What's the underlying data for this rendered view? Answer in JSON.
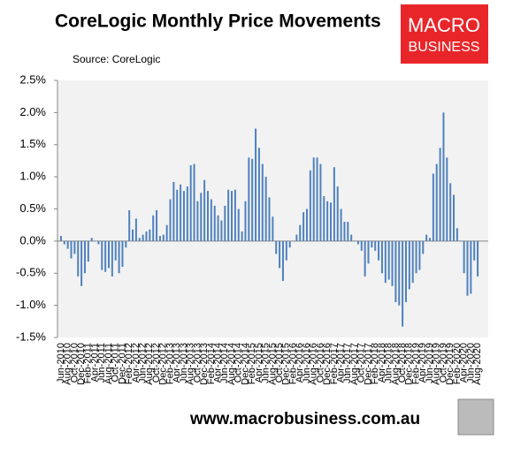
{
  "chart_data": {
    "type": "bar",
    "title": "CoreLogic Monthly Price Movements",
    "subtitle": "Source: CoreLogic",
    "logo": {
      "line1": "MACRO",
      "line2": "BUSINESS"
    },
    "footer": "www.macrobusiness.com.au",
    "color": "#4f81bd",
    "ylim": [
      -1.5,
      2.5
    ],
    "yticks": [
      {
        "value": -1.5,
        "label": "-1.5%"
      },
      {
        "value": -1.0,
        "label": "-1.0%"
      },
      {
        "value": -0.5,
        "label": "-0.5%"
      },
      {
        "value": 0,
        "label": "0.0%"
      },
      {
        "value": 0.5,
        "label": "0.5%"
      },
      {
        "value": 1.0,
        "label": "1.0%"
      },
      {
        "value": 1.5,
        "label": "1.5%"
      },
      {
        "value": 2.0,
        "label": "2.0%"
      },
      {
        "value": 2.5,
        "label": "2.5%"
      }
    ],
    "categories": [
      "Jun-2010",
      null,
      "Aug-2010",
      null,
      "Oct-2010",
      null,
      "Dec-2010",
      null,
      "Feb-2011",
      null,
      "Apr-2011",
      null,
      "Jun-2011",
      null,
      "Aug-2011",
      null,
      "Oct-2011",
      null,
      "Dec-2011",
      null,
      "Feb-2012",
      null,
      "Apr-2012",
      null,
      "Jun-2012",
      null,
      "Aug-2012",
      null,
      "Oct-2012",
      null,
      "Dec-2012",
      null,
      "Feb-2013",
      null,
      "Apr-2013",
      null,
      "Jun-2013",
      null,
      "Aug-2013",
      null,
      "Oct-2013",
      null,
      "Dec-2013",
      null,
      "Feb-2014",
      null,
      "Apr-2014",
      null,
      "Jun-2014",
      null,
      "Aug-2014",
      null,
      "Oct-2014",
      null,
      "Dec-2014",
      null,
      "Feb-2015",
      null,
      "Apr-2015",
      null,
      "Jun-2015",
      null,
      "Aug-2015",
      null,
      "Oct-2015",
      null,
      "Dec-2015",
      null,
      "Feb-2016",
      null,
      "Apr-2016",
      null,
      "Jun-2016",
      null,
      "Aug-2016",
      null,
      "Oct-2016",
      null,
      "Dec-2016",
      null,
      "Feb-2017",
      null,
      "Apr-2017",
      null,
      "Jun-2017",
      null,
      "Aug-2017",
      null,
      "Oct-2017",
      null,
      "Dec-2017",
      null,
      "Feb-2018",
      null,
      "Apr-2018",
      null,
      "Jun-2018",
      null,
      "Aug-2018",
      null,
      "Oct-2018",
      null,
      "Dec-2018",
      null,
      "Feb-2019",
      null,
      "Apr-2019",
      null,
      "Jun-2019",
      null,
      "Aug-2019",
      null,
      "Oct-2019",
      null,
      "Dec-2019",
      null,
      "Feb-2020",
      null,
      "Apr-2020",
      null,
      "Jun-2020",
      null,
      "Aug-2020"
    ],
    "values": [
      0.08,
      -0.05,
      -0.12,
      -0.27,
      -0.2,
      -0.55,
      -0.7,
      -0.5,
      -0.32,
      0.05,
      0.0,
      -0.05,
      -0.45,
      -0.48,
      -0.42,
      -0.55,
      -0.3,
      -0.5,
      -0.4,
      -0.1,
      0.48,
      0.18,
      0.35,
      0.05,
      0.1,
      0.15,
      0.18,
      0.4,
      0.48,
      0.08,
      0.1,
      0.25,
      0.65,
      0.92,
      0.8,
      0.88,
      0.78,
      0.85,
      1.18,
      1.2,
      0.62,
      0.75,
      0.95,
      0.78,
      0.65,
      0.55,
      0.4,
      0.32,
      0.55,
      0.8,
      0.78,
      0.8,
      0.5,
      0.15,
      0.62,
      1.3,
      1.28,
      1.75,
      1.45,
      1.2,
      1.0,
      0.68,
      0.38,
      -0.2,
      -0.42,
      -0.62,
      -0.3,
      -0.1,
      0.0,
      0.1,
      0.25,
      0.45,
      0.5,
      1.1,
      1.3,
      1.3,
      1.2,
      0.7,
      0.62,
      0.6,
      1.15,
      0.85,
      0.5,
      0.3,
      0.3,
      0.1,
      0.0,
      -0.05,
      -0.15,
      -0.55,
      -0.35,
      -0.1,
      -0.15,
      -0.3,
      -0.5,
      -0.65,
      -0.6,
      -0.7,
      -0.95,
      -1.0,
      -1.33,
      -0.95,
      -0.75,
      -0.65,
      -0.5,
      -0.45,
      -0.2,
      0.1,
      0.05,
      1.05,
      1.2,
      1.45,
      2.0,
      1.3,
      0.9,
      0.72,
      0.2,
      0.0,
      -0.5,
      -0.85,
      -0.82,
      -0.3,
      -0.55
    ]
  }
}
